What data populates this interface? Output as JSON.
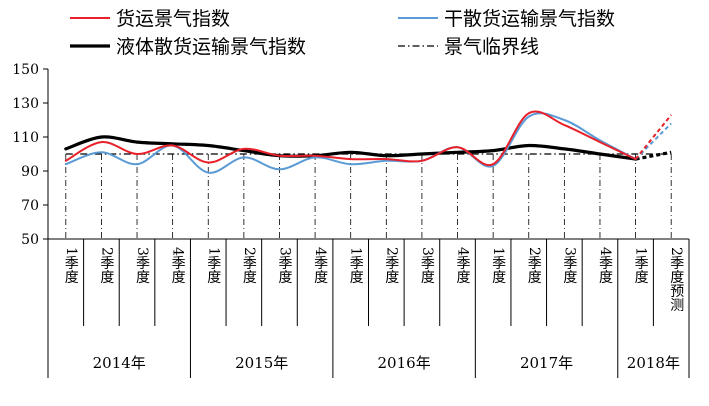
{
  "chart_data": {
    "type": "line",
    "title": "",
    "xlabel": "",
    "ylabel": "",
    "ylim": [
      50,
      150
    ],
    "yticks": [
      50,
      70,
      90,
      110,
      130,
      150
    ],
    "grid": false,
    "legend_position": "top",
    "categories": [
      "1季度",
      "2季度",
      "3季度",
      "4季度",
      "1季度",
      "2季度",
      "3季度",
      "4季度",
      "1季度",
      "2季度",
      "3季度",
      "4季度",
      "1季度",
      "2季度",
      "3季度",
      "4季度",
      "1季度",
      "2季度预测"
    ],
    "years": [
      {
        "label": "2014年",
        "span": 4
      },
      {
        "label": "2015年",
        "span": 4
      },
      {
        "label": "2016年",
        "span": 4
      },
      {
        "label": "2017年",
        "span": 4
      },
      {
        "label": "2018年",
        "span": 2
      }
    ],
    "series": [
      {
        "name": "货运景气指数",
        "color": "#e8202a",
        "values": [
          96,
          107,
          100,
          105,
          95,
          103,
          99,
          99,
          97,
          97,
          96,
          104,
          94,
          124,
          117,
          107,
          97,
          123
        ],
        "forecast_last": true
      },
      {
        "name": "干散货运输景气指数",
        "color": "#5b9bd5",
        "values": [
          94,
          101,
          94,
          105,
          89,
          98,
          91,
          98,
          94,
          96,
          96,
          104,
          93,
          122,
          120,
          108,
          97,
          118
        ],
        "forecast_last": true
      },
      {
        "name": "液体散货运输景气指数",
        "color": "#000000",
        "values": [
          103,
          110,
          107,
          106,
          105,
          102,
          99,
          99,
          101,
          99,
          100,
          101,
          102,
          105,
          103,
          100,
          97,
          101
        ],
        "forecast_last": true
      },
      {
        "name": "景气临界线",
        "color": "#000000",
        "values": [
          100,
          100,
          100,
          100,
          100,
          100,
          100,
          100,
          100,
          100,
          100,
          100,
          100,
          100,
          100,
          100,
          100,
          100
        ],
        "style": "dash-dot"
      }
    ]
  }
}
